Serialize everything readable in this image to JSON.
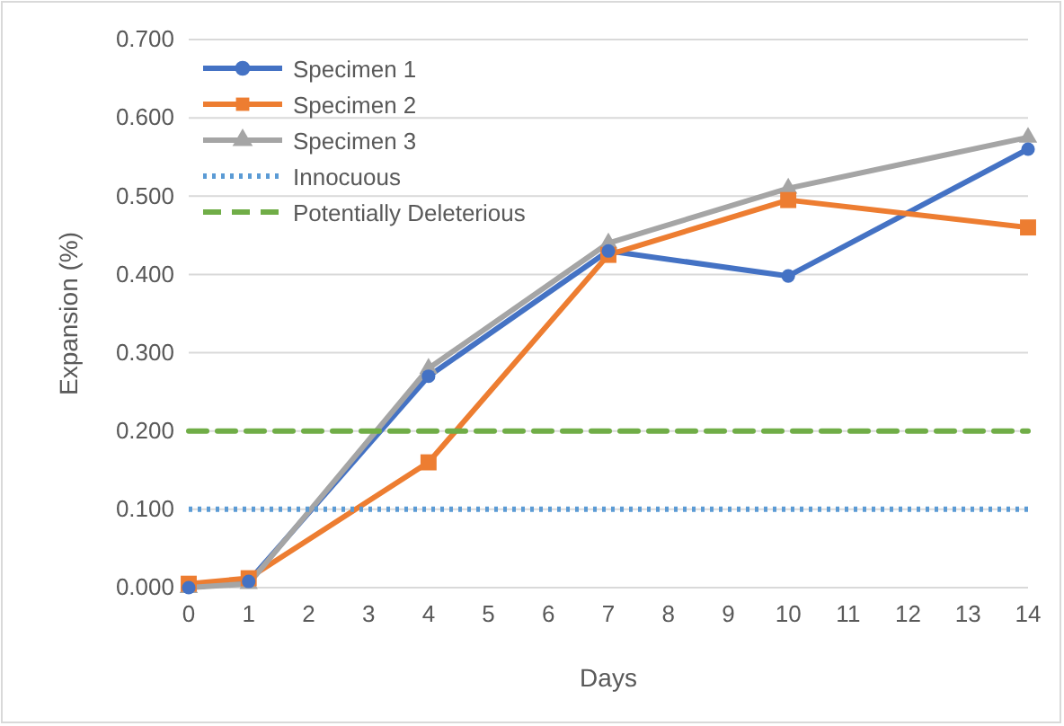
{
  "chart_data": {
    "type": "line",
    "xlabel": "Days",
    "ylabel": "Expansion (%)",
    "xlim": [
      0,
      14
    ],
    "xticks": [
      0,
      1,
      2,
      3,
      4,
      5,
      6,
      7,
      8,
      9,
      10,
      11,
      12,
      13,
      14
    ],
    "ylim": [
      0,
      0.7
    ],
    "yticks": [
      {
        "value": 0,
        "label": "0.000"
      },
      {
        "value": 0.1,
        "label": "0.100"
      },
      {
        "value": 0.2,
        "label": "0.200"
      },
      {
        "value": 0.3,
        "label": "0.300"
      },
      {
        "value": 0.4,
        "label": "0.400"
      },
      {
        "value": 0.5,
        "label": "0.500"
      },
      {
        "value": 0.6,
        "label": "0.600"
      },
      {
        "value": 0.7,
        "label": "0.700"
      }
    ],
    "grid": "y",
    "legend": "top left",
    "series": [
      {
        "name": "Specimen 1",
        "color": "#4472c4",
        "marker": "circle",
        "line_style": "solid",
        "x": [
          0,
          1,
          4,
          7,
          10,
          14
        ],
        "values": [
          0,
          0.008,
          0.27,
          0.43,
          0.398,
          0.56
        ]
      },
      {
        "name": "Specimen 2",
        "color": "#ed7d31",
        "marker": "square",
        "line_style": "solid",
        "x": [
          0,
          1,
          4,
          7,
          10,
          14
        ],
        "values": [
          0.005,
          0.012,
          0.16,
          0.425,
          0.495,
          0.46
        ]
      },
      {
        "name": "Specimen 3",
        "color": "#a5a5a5",
        "marker": "triangle",
        "line_style": "solid",
        "x": [
          0,
          1,
          4,
          7,
          10,
          14
        ],
        "values": [
          0,
          0.005,
          0.28,
          0.44,
          0.51,
          0.575
        ]
      },
      {
        "name": "Innocuous",
        "color": "#5b9bd5",
        "marker": "none",
        "line_style": "dotted",
        "x": [
          0,
          14
        ],
        "values": [
          0.1,
          0.1
        ]
      },
      {
        "name": "Potentially Deleterious",
        "color": "#70ad47",
        "marker": "none",
        "line_style": "dashed",
        "x": [
          0,
          14
        ],
        "values": [
          0.2,
          0.2
        ]
      }
    ]
  }
}
